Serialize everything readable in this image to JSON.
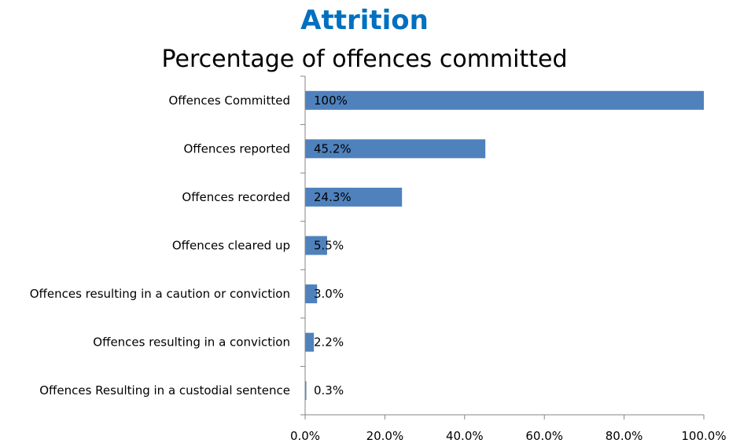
{
  "chart_data": {
    "type": "bar",
    "orientation": "horizontal",
    "title": "Attrition",
    "subtitle": "Percentage of offences committed",
    "categories": [
      "Offences Committed",
      "Offences reported",
      "Offences recorded",
      "Offences cleared up",
      "Offences resulting in a caution or conviction",
      "Offences resulting in a conviction",
      "Offences Resulting in a custodial sentence"
    ],
    "values": [
      100,
      45.2,
      24.3,
      5.5,
      3.0,
      2.2,
      0.3
    ],
    "data_labels": [
      "100%",
      "45.2%",
      "24.3%",
      "5.5%",
      "3.0%",
      "2.2%",
      "0.3%"
    ],
    "xlim": [
      0,
      100
    ],
    "x_ticks": [
      0,
      20,
      40,
      60,
      80,
      100
    ],
    "x_tick_labels": [
      "0.0%",
      "20.0%",
      "40.0%",
      "60.0%",
      "80.0%",
      "100.0%"
    ],
    "xlabel": "",
    "ylabel": "",
    "grid": false,
    "legend": "none",
    "colors": {
      "bar": "#4f81bd",
      "title": "#0070c0",
      "axis": "#868686"
    }
  }
}
